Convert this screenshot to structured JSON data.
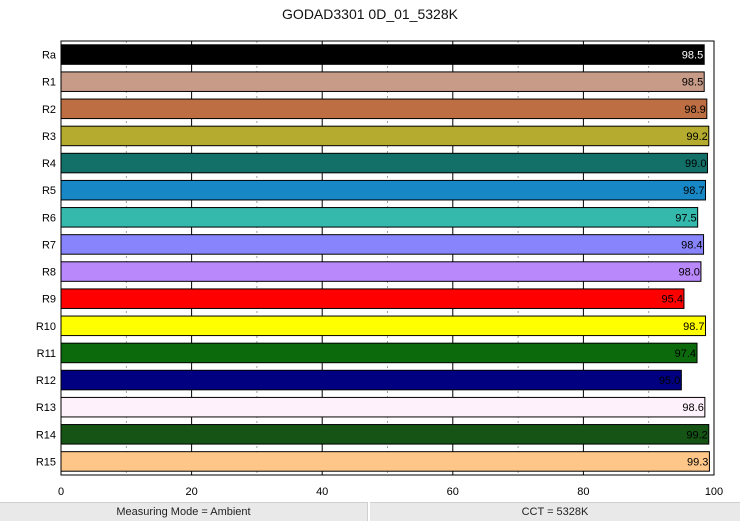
{
  "chart_data": {
    "type": "bar",
    "orientation": "horizontal",
    "title": "GODAD3301 0D_01_5328K",
    "xlabel": "",
    "ylabel": "",
    "xlim": [
      0,
      100
    ],
    "x_ticks": [
      "0",
      "20",
      "40",
      "60",
      "80",
      "100"
    ],
    "grid": "vertical major solid, minor dotted",
    "categories": [
      "Ra",
      "R1",
      "R2",
      "R3",
      "R4",
      "R5",
      "R6",
      "R7",
      "R8",
      "R9",
      "R10",
      "R11",
      "R12",
      "R13",
      "R14",
      "R15"
    ],
    "values": [
      98.5,
      98.5,
      98.9,
      99.2,
      99.0,
      98.7,
      97.5,
      98.4,
      98.0,
      95.4,
      98.7,
      97.4,
      95.0,
      98.6,
      99.2,
      99.3
    ],
    "value_labels": [
      "98.5",
      "98.5",
      "98.9",
      "99.2",
      "99.0",
      "98.7",
      "97.5",
      "98.4",
      "98.0",
      "95.4",
      "98.7",
      "97.4",
      "95.0",
      "98.6",
      "99.2",
      "99.3"
    ],
    "colors": [
      "#000000",
      "#c89a88",
      "#bd6e42",
      "#b5ab2f",
      "#127068",
      "#1787c6",
      "#35b9ac",
      "#8884fb",
      "#b988fb",
      "#ff0000",
      "#ffff00",
      "#0c6a0c",
      "#000080",
      "#fff1fb",
      "#155415",
      "#ffc68a"
    ],
    "label_colors": [
      "#ffffff",
      "#000000",
      "#000000",
      "#000000",
      "#000000",
      "#000000",
      "#000000",
      "#000000",
      "#000000",
      "#000000",
      "#000000",
      "#000000",
      "#000000",
      "#000000",
      "#000000",
      "#000000"
    ]
  },
  "footer": {
    "left": "Measuring Mode = Ambient",
    "right": "CCT = 5328K"
  }
}
